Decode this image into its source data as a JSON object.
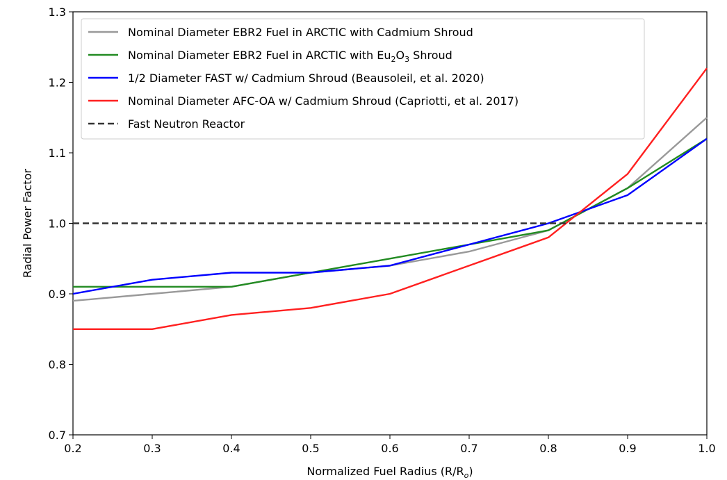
{
  "chart_data": {
    "type": "line",
    "xlabel_main": "Normalized Fuel Radius (R/R",
    "xlabel_sub": "o",
    "xlabel_close": ")",
    "ylabel": "Radial Power Factor",
    "xlim": [
      0.2,
      1.0
    ],
    "ylim": [
      0.7,
      1.3
    ],
    "xticks": [
      "0.2",
      "0.3",
      "0.4",
      "0.5",
      "0.6",
      "0.7",
      "0.8",
      "0.9",
      "1.0"
    ],
    "yticks": [
      "0.7",
      "0.8",
      "0.9",
      "1.0",
      "1.1",
      "1.2",
      "1.3"
    ],
    "grid": false,
    "legend_position": "top-left",
    "x": [
      0.2,
      0.3,
      0.4,
      0.5,
      0.6,
      0.7,
      0.8,
      0.9,
      1.0
    ],
    "series": [
      {
        "name": "Nominal Diameter EBR2 Fuel in ARCTIC with Cadmium Shroud",
        "color": "#999999",
        "dash": "solid",
        "values": [
          0.89,
          0.9,
          0.91,
          0.93,
          0.94,
          0.96,
          0.99,
          1.05,
          1.15
        ]
      },
      {
        "name": "Nominal Diameter EBR2 Fuel in ARCTIC with Eu",
        "name_sub1": "2",
        "name_mid": "O",
        "name_sub2": "3",
        "name_end": " Shroud",
        "color": "#228B22",
        "dash": "solid",
        "values": [
          0.91,
          0.91,
          0.91,
          0.93,
          0.95,
          0.97,
          0.99,
          1.05,
          1.12
        ]
      },
      {
        "name": "1/2 Diameter FAST w/ Cadmium Shroud (Beausoleil, et al. 2020)",
        "color": "#0000FF",
        "dash": "solid",
        "values": [
          0.9,
          0.92,
          0.93,
          0.93,
          0.94,
          0.97,
          1.0,
          1.04,
          1.12
        ]
      },
      {
        "name": "Nominal Diameter AFC-OA w/ Cadmium Shroud (Capriotti, et al. 2017)",
        "color": "#FF2020",
        "dash": "solid",
        "values": [
          0.85,
          0.85,
          0.87,
          0.88,
          0.9,
          0.94,
          0.98,
          1.07,
          1.22
        ]
      },
      {
        "name": "Fast Neutron Reactor",
        "color": "#333333",
        "dash": "dashed",
        "values": [
          1.0,
          1.0,
          1.0,
          1.0,
          1.0,
          1.0,
          1.0,
          1.0,
          1.0
        ]
      }
    ]
  }
}
